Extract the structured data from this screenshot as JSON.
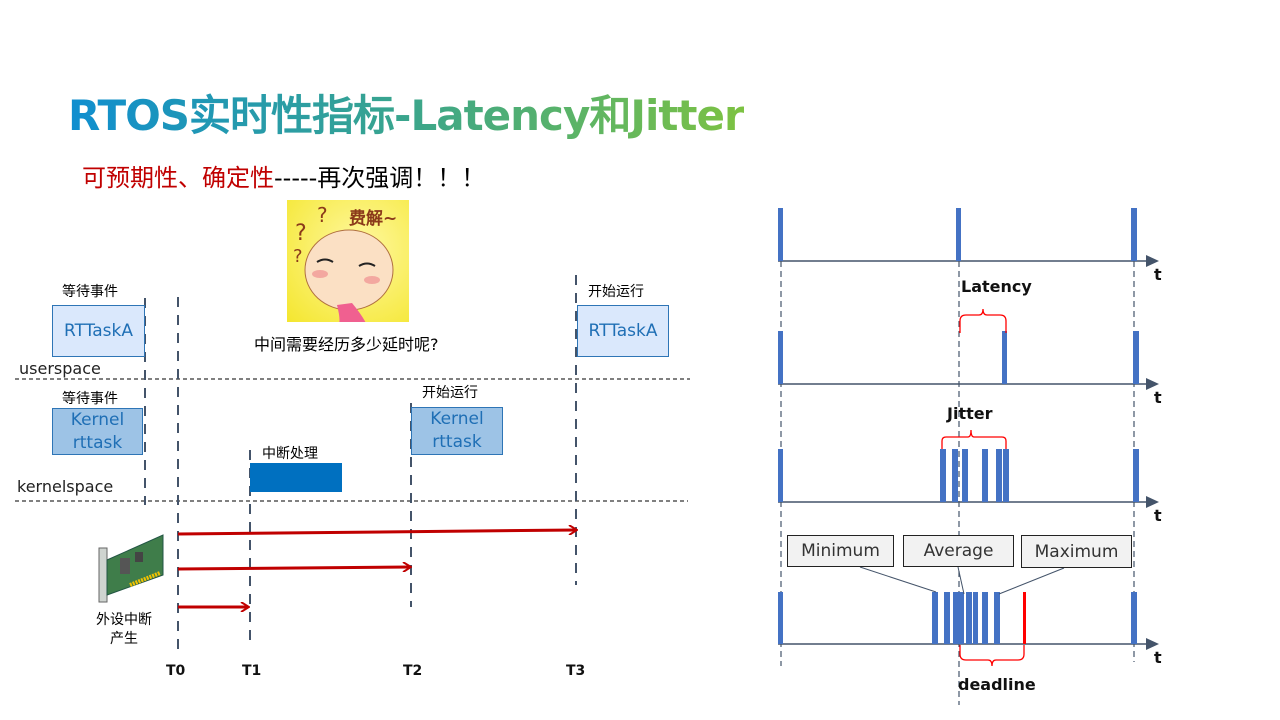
{
  "title": "RTOS实时性指标-Latency和Jitter",
  "subtitle": {
    "red1": "可预期性",
    "sep": "、",
    "red2": "确定性",
    "rest": "-----再次强调！！！"
  },
  "left": {
    "wait_event_user": "等待事件",
    "task_user_before": "RTTaskA",
    "start_run_user": "开始运行",
    "task_user_after": "RTTaskA",
    "question": "中间需要经历多少延时呢?",
    "emoji_text": "费解~",
    "userspace": "userspace",
    "wait_event_kernel": "等待事件",
    "kernel_task_before": {
      "line1": "Kernel",
      "line2": "rttask"
    },
    "start_run_kernel": "开始运行",
    "kernel_task_after": {
      "line1": "Kernel",
      "line2": "rttask"
    },
    "irq_handling": "中断处理",
    "kernelspace": "kernelspace",
    "device_irq": {
      "line1": "外设中断",
      "line2": "产生"
    },
    "times": [
      "T0",
      "T1",
      "T2",
      "T3"
    ],
    "colors": {
      "arrow": "#c00000",
      "irq_block": "#0070c0"
    }
  },
  "right": {
    "axis_label": "t",
    "latency": "Latency",
    "jitter": "Jitter",
    "minimum": "Minimum",
    "average": "Average",
    "maximum": "Maximum",
    "deadline": "deadline",
    "colors": {
      "bar": "#4472c4",
      "deadline": "#ff0000",
      "brace": "#ff0000",
      "axis": "#44546a"
    }
  }
}
